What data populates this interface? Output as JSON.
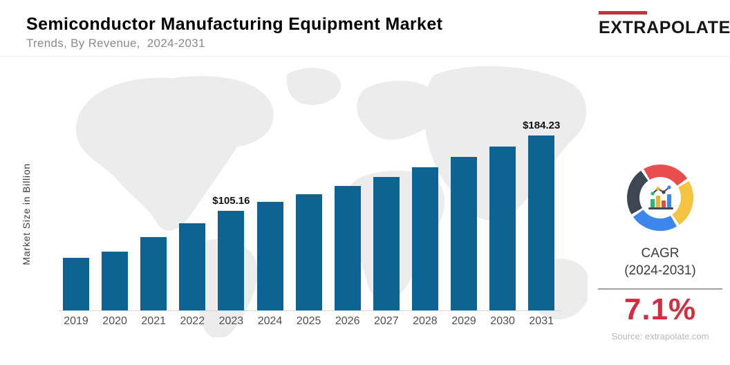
{
  "header": {
    "title": "Semiconductor Manufacturing Equipment Market",
    "subtitle": "Trends, By Revenue,  2024-2031",
    "logo_text": "EXTRAPOLATE",
    "logo_accent_color": "#c8303c"
  },
  "chart_data": {
    "type": "bar",
    "title": "Semiconductor Manufacturing Equipment Market",
    "subtitle": "Trends, By Revenue, 2024-2031",
    "ylabel": "Market Size in Billion",
    "xlabel": "",
    "categories": [
      "2019",
      "2020",
      "2021",
      "2022",
      "2023",
      "2024",
      "2025",
      "2026",
      "2027",
      "2028",
      "2029",
      "2030",
      "2031"
    ],
    "values": [
      55,
      62,
      77,
      92,
      105.16,
      114,
      122.5,
      131,
      140.5,
      150.5,
      161.5,
      172.5,
      184.23
    ],
    "point_labels": [
      {
        "index": 4,
        "text": "$105.16"
      },
      {
        "index": 12,
        "text": "$184.23"
      }
    ],
    "bar_color": "#0d6493",
    "ylim": [
      0,
      200
    ],
    "grid": false,
    "legend": false
  },
  "side_panel": {
    "cagr_label": "CAGR",
    "cagr_period": "(2024-2031)",
    "cagr_value": "7.1%",
    "cagr_value_color": "#d02f3f",
    "source": "Source: extrapolate.com",
    "donut_segments": [
      "#e94d4d",
      "#f4c33f",
      "#3c86ee",
      "#3e4653"
    ]
  }
}
